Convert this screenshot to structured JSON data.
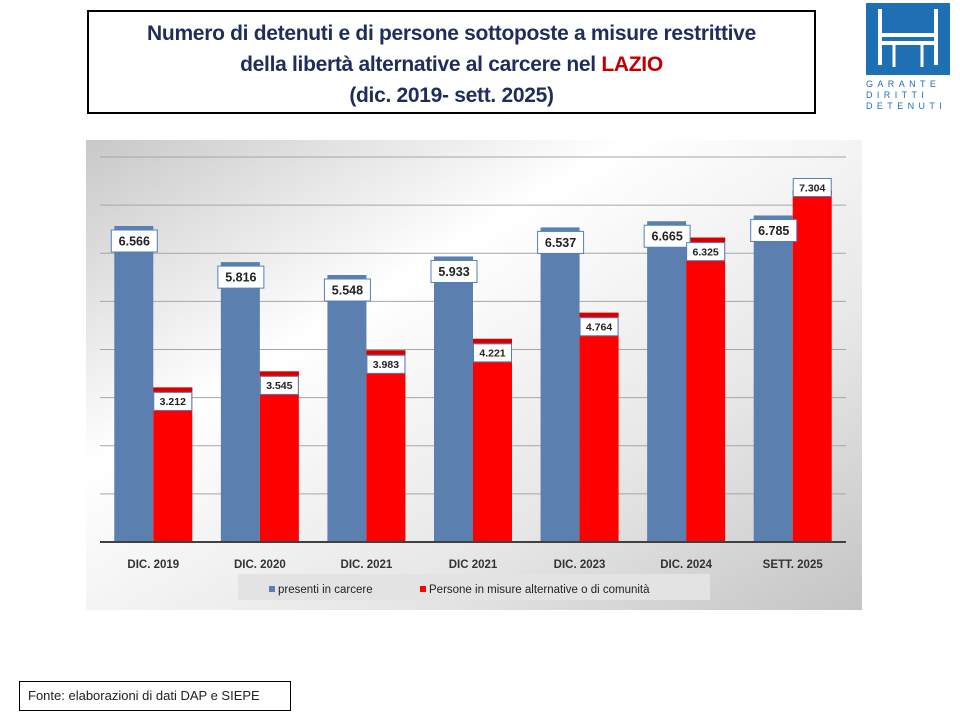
{
  "title": {
    "line1": "Numero di detenuti e di persone sottoposte a misure restrittive",
    "line2_prefix": "della libertà alternative al carcere nel ",
    "line2_highlight": "LAZIO",
    "line3": "(dic. 2019- sett. 2025)"
  },
  "logo": {
    "text_lines": [
      "GARANTE",
      "DIRITTI",
      "DETENUTI"
    ],
    "color": "#1f6fb5"
  },
  "footer": {
    "source": "Fonte: elaborazioni di dati DAP e SIEPE"
  },
  "chart_data": {
    "type": "bar",
    "title": "Numero di detenuti e di persone sottoposte a misure restrittive della libertà alternative al carcere nel LAZIO (dic. 2019- sett. 2025)",
    "xlabel": "",
    "ylabel": "",
    "ylim": [
      0,
      8000
    ],
    "ytick_step": 1000,
    "grid": true,
    "legend_position": "bottom",
    "categories": [
      "DIC. 2019",
      "DIC. 2020",
      "DIC. 2021",
      "DIC 2021",
      "DIC. 2023",
      "DIC. 2024",
      "SETT. 2025"
    ],
    "series": [
      {
        "name": "presenti in carcere",
        "color": "#5b7fae",
        "values": [
          6566,
          5816,
          5548,
          5933,
          6537,
          6665,
          6785
        ],
        "labels": [
          "6.566",
          "5.816",
          "5.548",
          "5.933",
          "6.537",
          "6.665",
          "6.785"
        ]
      },
      {
        "name": "Persone in misure alternative o di comunità",
        "color": "#ff0000",
        "values": [
          3212,
          3545,
          3983,
          4221,
          4764,
          6325,
          7304
        ],
        "labels": [
          "3.212",
          "3.545",
          "3.983",
          "4.221",
          "4.764",
          "6.325",
          "7.304"
        ]
      }
    ]
  }
}
